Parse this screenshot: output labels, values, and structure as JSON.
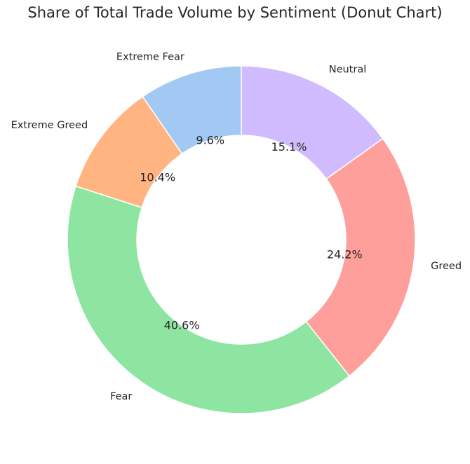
{
  "chart_data": {
    "type": "pie",
    "variant": "donut",
    "title": "Share of Total Trade Volume by Sentiment (Donut Chart)",
    "start_angle_deg": 90,
    "direction": "counterclockwise",
    "slices": [
      {
        "name": "Extreme Fear",
        "value": 9.6,
        "label": "9.6%",
        "color": "#a1c9f4"
      },
      {
        "name": "Extreme Greed",
        "value": 10.4,
        "label": "10.4%",
        "color": "#ffb482"
      },
      {
        "name": "Fear",
        "value": 40.6,
        "label": "40.6%",
        "color": "#8de5a1"
      },
      {
        "name": "Greed",
        "value": 24.2,
        "label": "24.2%",
        "color": "#ff9f9b"
      },
      {
        "name": "Neutral",
        "value": 15.1,
        "label": "15.1%",
        "color": "#d0bbff"
      }
    ]
  }
}
